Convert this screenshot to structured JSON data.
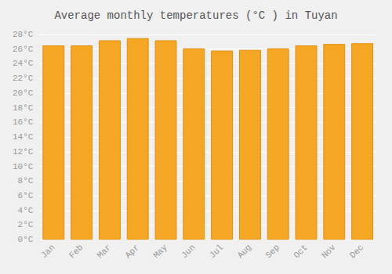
{
  "chart_data": {
    "type": "bar",
    "title": "Average monthly temperatures (°C ) in Tuyan",
    "categories": [
      "Jan",
      "Feb",
      "Mar",
      "Apr",
      "May",
      "Jun",
      "Jul",
      "Aug",
      "Sep",
      "Oct",
      "Nov",
      "Dec"
    ],
    "values": [
      26.5,
      26.5,
      27.2,
      27.5,
      27.2,
      26.1,
      25.8,
      25.9,
      26.1,
      26.5,
      26.7,
      26.8
    ],
    "color": "#F5A623",
    "ylim": [
      0,
      28
    ],
    "yticks": [
      {
        "value": 0,
        "label": "0°C"
      },
      {
        "value": 2,
        "label": "2°C"
      },
      {
        "value": 4,
        "label": "4°C"
      },
      {
        "value": 6,
        "label": "6°C"
      },
      {
        "value": 8,
        "label": "8°C"
      },
      {
        "value": 10,
        "label": "10°C"
      },
      {
        "value": 12,
        "label": "12°C"
      },
      {
        "value": 14,
        "label": "14°C"
      },
      {
        "value": 16,
        "label": "16°C"
      },
      {
        "value": 18,
        "label": "18°C"
      },
      {
        "value": 20,
        "label": "20°C"
      },
      {
        "value": 22,
        "label": "22°C"
      },
      {
        "value": 24,
        "label": "24°C"
      },
      {
        "value": 26,
        "label": "26°C"
      },
      {
        "value": 28,
        "label": "28°C"
      }
    ],
    "grid": true
  }
}
